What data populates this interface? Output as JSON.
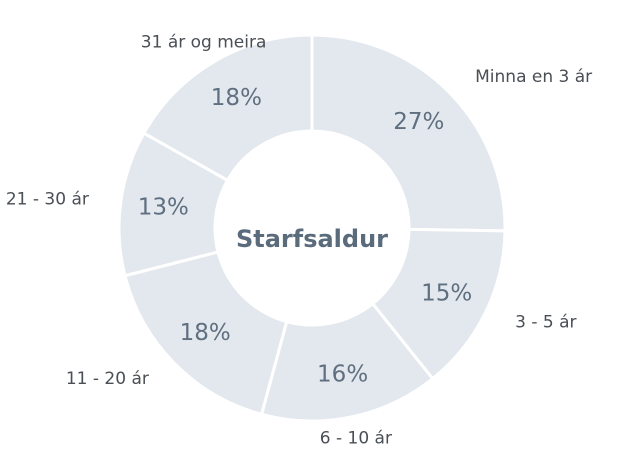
{
  "chart_data": {
    "type": "pie",
    "donut": true,
    "center_label": "Starfsaldur",
    "categories": [
      "Minna en 3 ár",
      "3 - 5 ár",
      "6 - 10 ár",
      "11 - 20 ár",
      "21 - 30 ár",
      "31 ár og meira"
    ],
    "values": [
      27,
      15,
      16,
      18,
      13,
      18
    ],
    "value_labels": [
      "27%",
      "15%",
      "16%",
      "18%",
      "13%",
      "18%"
    ],
    "color": "#e3e8ee"
  }
}
